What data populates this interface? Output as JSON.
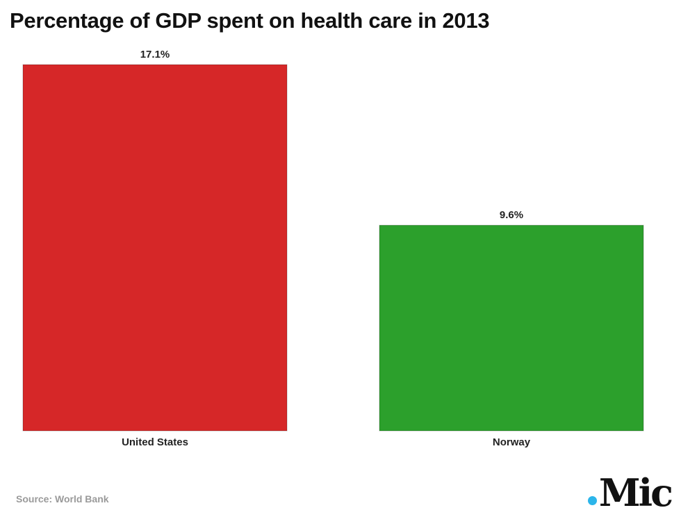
{
  "title": "Percentage of GDP spent on health care in 2013",
  "source": "Source: World Bank",
  "logo": {
    "text": "Mic",
    "dot_color": "#2bb5ea"
  },
  "chart_data": {
    "type": "bar",
    "categories": [
      "United States",
      "Norway"
    ],
    "values": [
      17.1,
      9.6
    ],
    "value_labels": [
      "17.1%",
      "9.6%"
    ],
    "colors": [
      "#d62728",
      "#2ca02c"
    ],
    "title": "Percentage of GDP spent on health care in 2013",
    "xlabel": "",
    "ylabel": "",
    "ylim": [
      0,
      17.1
    ],
    "grid": false,
    "legend": "none"
  }
}
